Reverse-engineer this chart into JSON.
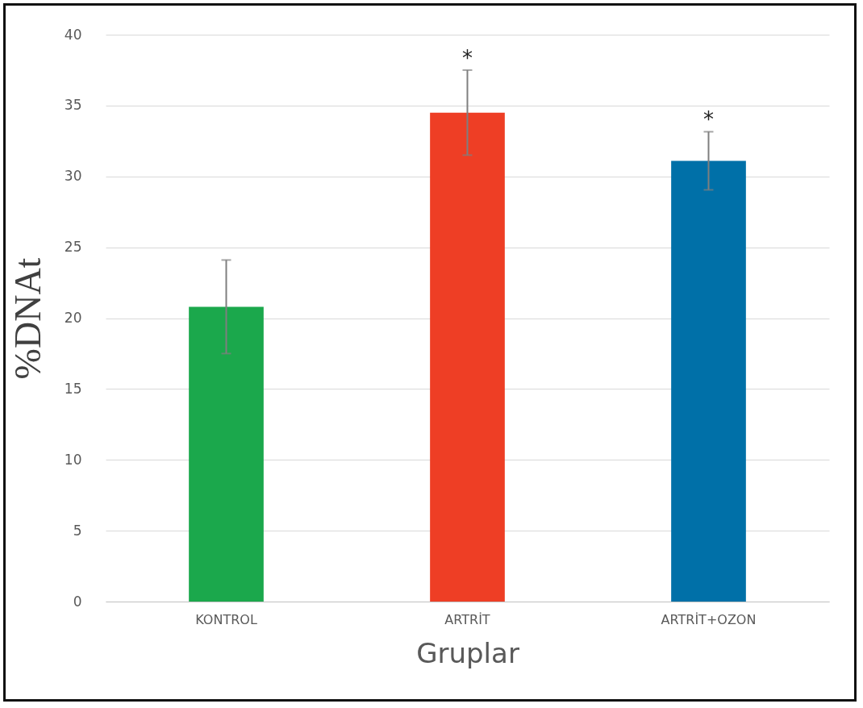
{
  "chart_data": {
    "type": "bar",
    "xlabel": "Gruplar",
    "ylabel": "%DNAt",
    "categories": [
      "KONTROL",
      "ARTRİT",
      "ARTRİT+OZON"
    ],
    "values": [
      20.8,
      34.5,
      31.1
    ],
    "colors": [
      "#1ba84c",
      "#ee3e25",
      "#0070a8"
    ],
    "errors": [
      3.3,
      3.0,
      2.05
    ],
    "ylim": [
      0,
      40
    ],
    "yticks": [
      0,
      5,
      10,
      15,
      20,
      25,
      30,
      35,
      40
    ],
    "grid": "y",
    "annotations": [
      {
        "text": "*",
        "x": "ARTRİT",
        "y": 37.5
      },
      {
        "text": "*",
        "x": "ARTRİT+OZON",
        "y": 33.15
      }
    ]
  }
}
